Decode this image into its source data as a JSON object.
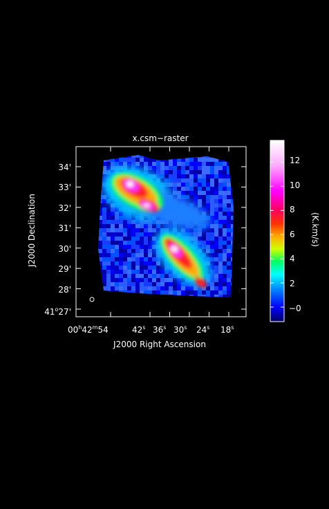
{
  "figure": {
    "title": "x.csm−raster",
    "xlabel": "J2000 Right Ascension",
    "ylabel": "J2000 Declination",
    "colorbar_label": "(K.km/s)"
  },
  "x_axis": {
    "ticks": [
      {
        "h": "00",
        "hsup": "h",
        "m": "42",
        "msup": "m",
        "s": "54",
        "ssup": ""
      },
      {
        "s": "42",
        "ssup": "s"
      },
      {
        "s": "36",
        "ssup": "s"
      },
      {
        "s": "30",
        "ssup": "s"
      },
      {
        "s": "24",
        "ssup": "s"
      },
      {
        "s": "18",
        "ssup": "s"
      }
    ],
    "tick_values_sec": [
      54,
      42,
      36,
      30,
      24,
      18
    ]
  },
  "y_axis": {
    "ticks": [
      {
        "deg": "41",
        "degsup": "o",
        "min": "27'"
      },
      {
        "min": "28'"
      },
      {
        "min": "29'"
      },
      {
        "min": "30'"
      },
      {
        "min": "31'"
      },
      {
        "min": "32'"
      },
      {
        "min": "33'"
      },
      {
        "min": "34'"
      }
    ],
    "tick_values_arcmin": [
      27,
      28,
      29,
      30,
      31,
      32,
      33,
      34
    ]
  },
  "colorbar": {
    "ticks": [
      "−0",
      "2",
      "4",
      "6",
      "8",
      "10",
      "12"
    ],
    "tick_values": [
      0,
      2,
      4,
      6,
      8,
      10,
      12
    ],
    "range": [
      -1.2,
      13.8
    ],
    "colors": [
      "#000060",
      "#0000ff",
      "#0088ff",
      "#00ffff",
      "#00ff66",
      "#ccff00",
      "#ffaa00",
      "#ff3300",
      "#ff0066",
      "#ff00ff",
      "#ffaaff",
      "#ffffff"
    ]
  },
  "chart_data": {
    "type": "heatmap",
    "title": "x.csm−raster",
    "xlabel": "J2000 Right Ascension",
    "ylabel": "J2000 Declination",
    "colorbar_label": "(K.km/s)",
    "clim": [
      -1.2,
      13.8
    ],
    "features": [
      {
        "ra_s": 44.5,
        "dec_arcmin": 32.8,
        "peak": 13.5
      },
      {
        "ra_s": 40.0,
        "dec_arcmin": 32.1,
        "peak": 12.5
      },
      {
        "ra_s": 32.5,
        "dec_arcmin": 29.9,
        "peak": 11.5
      },
      {
        "ra_s": 28.5,
        "dec_arcmin": 29.0,
        "peak": 9.0
      },
      {
        "ra_s": 24.5,
        "dec_arcmin": 28.2,
        "peak": 7.0
      }
    ]
  }
}
